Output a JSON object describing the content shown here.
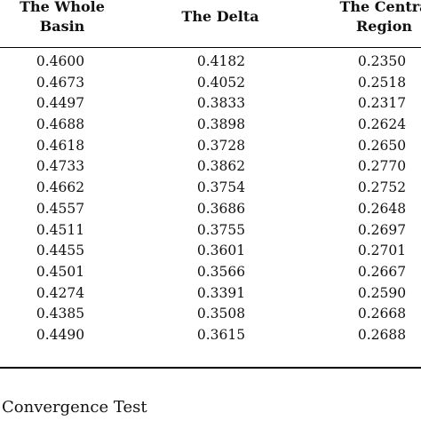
{
  "table": {
    "headers": [
      {
        "line1": "The Whole",
        "line2": "Basin"
      },
      {
        "line1": "The Delta",
        "line2": ""
      },
      {
        "line1": "The Centra",
        "line2": "Region"
      }
    ],
    "rows": [
      [
        "0.4600",
        "0.4182",
        "0.2350"
      ],
      [
        "0.4673",
        "0.4052",
        "0.2518"
      ],
      [
        "0.4497",
        "0.3833",
        "0.2317"
      ],
      [
        "0.4688",
        "0.3898",
        "0.2624"
      ],
      [
        "0.4618",
        "0.3728",
        "0.2650"
      ],
      [
        "0.4733",
        "0.3862",
        "0.2770"
      ],
      [
        "0.4662",
        "0.3754",
        "0.2752"
      ],
      [
        "0.4557",
        "0.3686",
        "0.2648"
      ],
      [
        "0.4511",
        "0.3755",
        "0.2697"
      ],
      [
        "0.4455",
        "0.3601",
        "0.2701"
      ],
      [
        "0.4501",
        "0.3566",
        "0.2667"
      ],
      [
        "0.4274",
        "0.3391",
        "0.2590"
      ],
      [
        "0.4385",
        "0.3508",
        "0.2668"
      ],
      [
        "0.4490",
        "0.3615",
        "0.2688"
      ]
    ]
  },
  "caption": "Convergence Test"
}
